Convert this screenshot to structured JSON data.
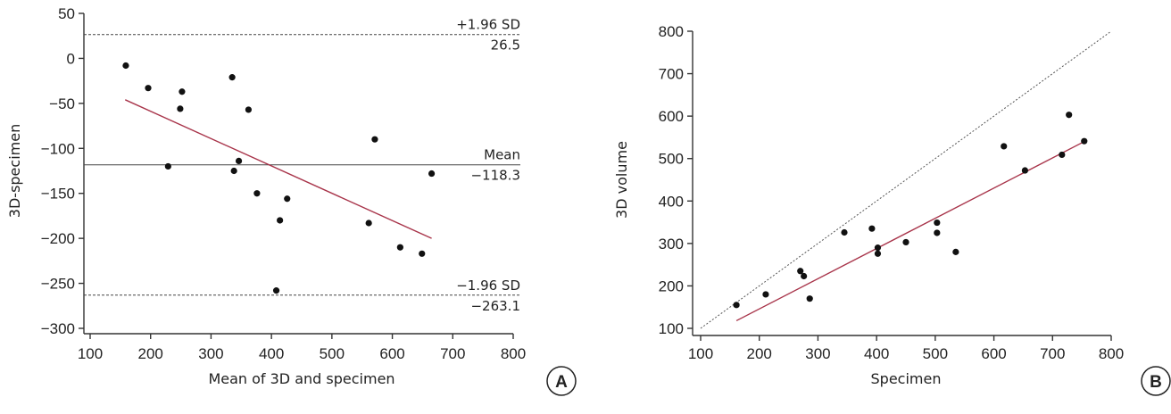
{
  "chart_data": [
    {
      "panel": "A",
      "type": "scatter",
      "xlabel": "Mean of 3D and specimen",
      "ylabel": "3D-specimen",
      "xlim": [
        100,
        800
      ],
      "ylim": [
        -300,
        50
      ],
      "xticks": [
        100,
        200,
        300,
        400,
        500,
        600,
        700,
        800
      ],
      "yticks": [
        50,
        0,
        -50,
        -100,
        -150,
        -200,
        -250,
        -300
      ],
      "points": [
        {
          "x": 159,
          "y": -8
        },
        {
          "x": 196,
          "y": -33
        },
        {
          "x": 249,
          "y": -56
        },
        {
          "x": 252,
          "y": -37
        },
        {
          "x": 229,
          "y": -120
        },
        {
          "x": 335,
          "y": -21
        },
        {
          "x": 338,
          "y": -125
        },
        {
          "x": 346,
          "y": -114
        },
        {
          "x": 362,
          "y": -57
        },
        {
          "x": 376,
          "y": -150
        },
        {
          "x": 408,
          "y": -258
        },
        {
          "x": 414,
          "y": -180
        },
        {
          "x": 426,
          "y": -156
        },
        {
          "x": 561,
          "y": -183
        },
        {
          "x": 571,
          "y": -90
        },
        {
          "x": 613,
          "y": -210
        },
        {
          "x": 649,
          "y": -217
        },
        {
          "x": 665,
          "y": -128
        }
      ],
      "regression": {
        "x1": 158,
        "y1": -46,
        "x2": 665,
        "y2": -200,
        "color": "#a8344a"
      },
      "reference_lines": [
        {
          "label": "+1.96 SD",
          "value_text": "26.5",
          "y": 26.5,
          "style": "dashed"
        },
        {
          "label": "Mean",
          "value_text": "−118.3",
          "y": -118.3,
          "style": "solid"
        },
        {
          "label": "−1.96 SD",
          "value_text": "−263.1",
          "y": -263.1,
          "style": "dashed"
        }
      ]
    },
    {
      "panel": "B",
      "type": "scatter",
      "xlabel": "Specimen",
      "ylabel": "3D volume",
      "xlim": [
        100,
        800
      ],
      "ylim": [
        100,
        800
      ],
      "xticks": [
        100,
        200,
        300,
        400,
        500,
        600,
        700,
        800
      ],
      "yticks": [
        800,
        700,
        600,
        500,
        400,
        300,
        200,
        100
      ],
      "points": [
        {
          "x": 161,
          "y": 155
        },
        {
          "x": 211,
          "y": 180
        },
        {
          "x": 270,
          "y": 235
        },
        {
          "x": 276,
          "y": 223
        },
        {
          "x": 286,
          "y": 170
        },
        {
          "x": 345,
          "y": 326
        },
        {
          "x": 392,
          "y": 335
        },
        {
          "x": 402,
          "y": 290
        },
        {
          "x": 402,
          "y": 276
        },
        {
          "x": 450,
          "y": 303
        },
        {
          "x": 503,
          "y": 349
        },
        {
          "x": 503,
          "y": 325
        },
        {
          "x": 535,
          "y": 280
        },
        {
          "x": 617,
          "y": 529
        },
        {
          "x": 653,
          "y": 472
        },
        {
          "x": 716,
          "y": 509
        },
        {
          "x": 728,
          "y": 603
        },
        {
          "x": 754,
          "y": 541
        }
      ],
      "regression": {
        "x1": 161,
        "y1": 118,
        "x2": 754,
        "y2": 540,
        "color": "#a8344a"
      },
      "identity_line": {
        "x1": 100,
        "y1": 100,
        "x2": 800,
        "y2": 800,
        "style": "dashed"
      }
    }
  ],
  "panel_labels": [
    "A",
    "B"
  ]
}
